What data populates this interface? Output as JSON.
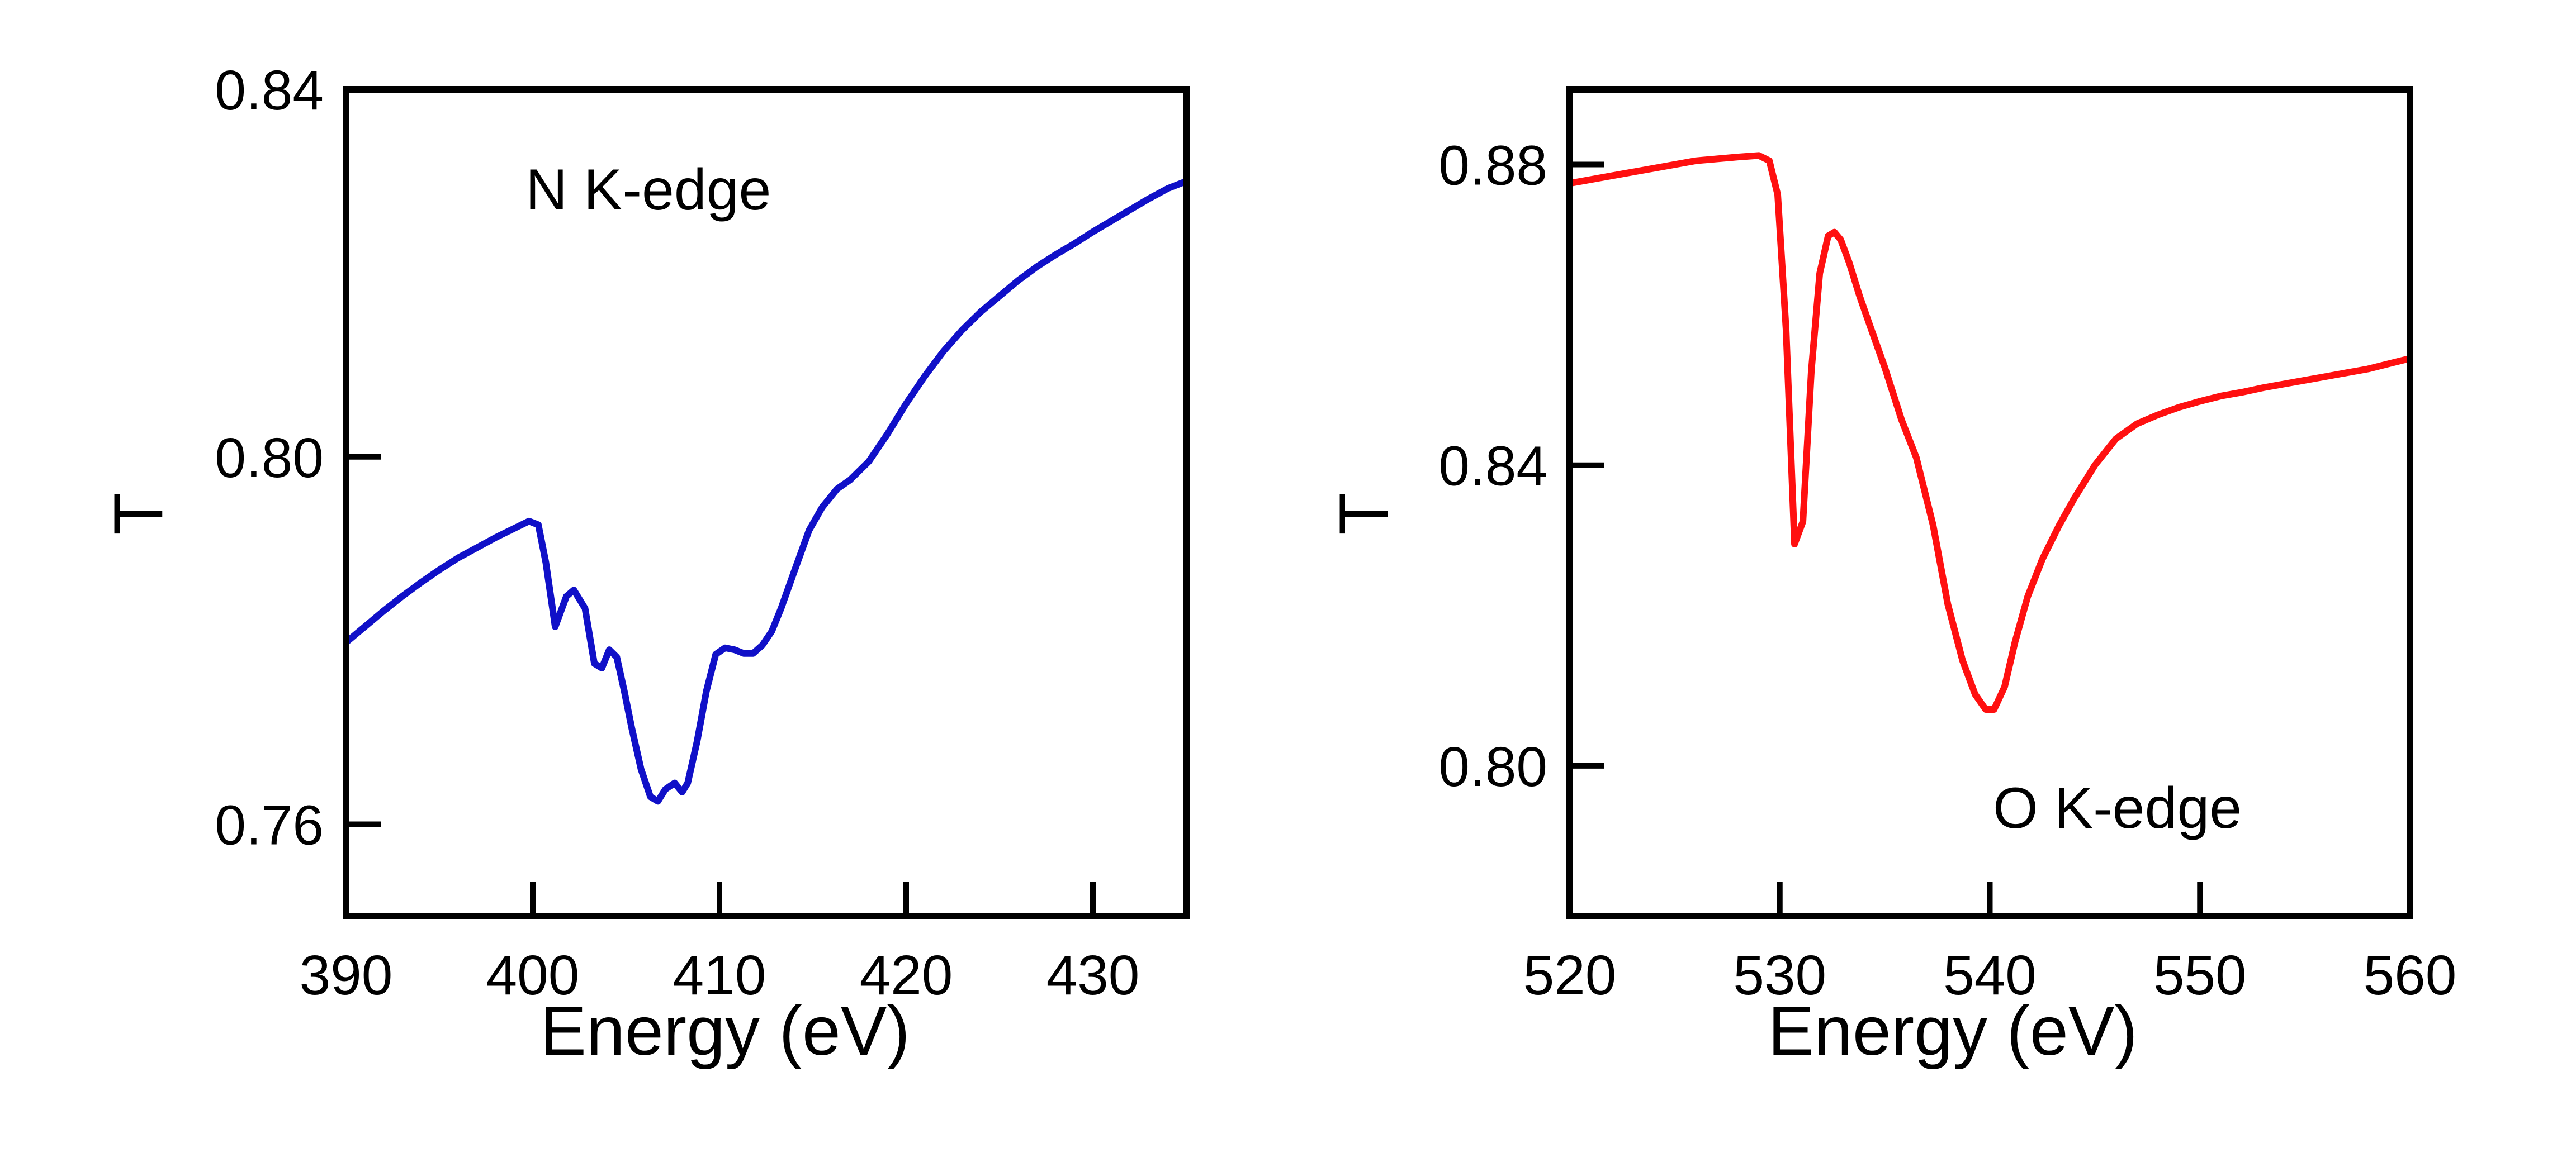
{
  "chart_data": [
    {
      "type": "line",
      "annotation": "N K-edge",
      "xlabel": "Energy (eV)",
      "ylabel": "T",
      "xlim": [
        390,
        435
      ],
      "ylim": [
        0.75,
        0.84
      ],
      "xticks": [
        390,
        400,
        410,
        420,
        430
      ],
      "xtick_labels": [
        "390",
        "400",
        "410",
        "420",
        "430"
      ],
      "yticks": [
        0.76,
        0.8,
        0.84
      ],
      "ytick_labels": [
        "0.76",
        "0.80",
        "0.84"
      ],
      "grid": false,
      "series": [
        {
          "name": "N K-edge",
          "color": "#1010c8",
          "x": [
            390,
            391,
            392,
            393,
            394,
            395,
            396,
            397,
            398,
            399,
            399.8,
            400.3,
            400.7,
            401.2,
            401.8,
            402.2,
            402.8,
            403.3,
            403.7,
            404.1,
            404.5,
            404.9,
            405.3,
            405.8,
            406.3,
            406.7,
            407.1,
            407.6,
            408,
            408.3,
            408.8,
            409.3,
            409.8,
            410.3,
            410.8,
            411.3,
            411.8,
            412.3,
            412.8,
            413.3,
            414,
            414.8,
            415.5,
            416.3,
            417,
            418,
            419,
            420,
            421,
            422,
            423,
            424,
            425,
            426,
            427,
            428,
            429,
            430,
            431,
            432,
            433,
            434,
            435
          ],
          "values": [
            0.7798,
            0.7815,
            0.7832,
            0.7848,
            0.7863,
            0.7877,
            0.789,
            0.7901,
            0.7912,
            0.7922,
            0.793,
            0.7926,
            0.7885,
            0.7815,
            0.7848,
            0.7855,
            0.7835,
            0.7775,
            0.777,
            0.779,
            0.7782,
            0.7745,
            0.7705,
            0.766,
            0.763,
            0.7625,
            0.7638,
            0.7645,
            0.7635,
            0.7645,
            0.769,
            0.7745,
            0.7785,
            0.7792,
            0.779,
            0.7786,
            0.7786,
            0.7795,
            0.781,
            0.7835,
            0.7875,
            0.792,
            0.7945,
            0.7965,
            0.7975,
            0.7995,
            0.8025,
            0.8058,
            0.8088,
            0.8115,
            0.8138,
            0.8158,
            0.8175,
            0.8192,
            0.8207,
            0.822,
            0.8232,
            0.8245,
            0.8257,
            0.8269,
            0.8281,
            0.8292,
            0.83
          ]
        }
      ]
    },
    {
      "type": "line",
      "annotation": "O K-edge",
      "xlabel": "Energy (eV)",
      "ylabel": "T",
      "xlim": [
        520,
        560
      ],
      "ylim": [
        0.78,
        0.89
      ],
      "xticks": [
        520,
        530,
        540,
        550,
        560
      ],
      "xtick_labels": [
        "520",
        "530",
        "540",
        "550",
        "560"
      ],
      "yticks": [
        0.8,
        0.84,
        0.88
      ],
      "ytick_labels": [
        "0.80",
        "0.84",
        "0.88"
      ],
      "grid": false,
      "series": [
        {
          "name": "O K-edge",
          "color": "#ff1010",
          "x": [
            520,
            522,
            524,
            526,
            528,
            529,
            529.5,
            529.9,
            530.3,
            530.7,
            531.1,
            531.5,
            531.9,
            532.3,
            532.6,
            532.9,
            533.3,
            533.8,
            534.3,
            535,
            535.8,
            536.5,
            537.3,
            538,
            538.7,
            539.3,
            539.8,
            540.2,
            540.7,
            541.2,
            541.8,
            542.5,
            543.3,
            544,
            545,
            546,
            547,
            548,
            549,
            550,
            551,
            552,
            553,
            554,
            555,
            556,
            557,
            558,
            559,
            560
          ],
          "values": [
            0.8775,
            0.8785,
            0.8795,
            0.8805,
            0.881,
            0.8812,
            0.8805,
            0.876,
            0.858,
            0.8295,
            0.8325,
            0.8525,
            0.8655,
            0.8705,
            0.871,
            0.87,
            0.867,
            0.8625,
            0.8585,
            0.853,
            0.846,
            0.841,
            0.832,
            0.8215,
            0.814,
            0.8095,
            0.8075,
            0.8075,
            0.8105,
            0.8165,
            0.8225,
            0.8275,
            0.832,
            0.8355,
            0.84,
            0.8435,
            0.8455,
            0.8467,
            0.8477,
            0.8485,
            0.8492,
            0.8497,
            0.8503,
            0.8508,
            0.8513,
            0.8518,
            0.8523,
            0.8528,
            0.8535,
            0.8542
          ]
        }
      ]
    }
  ]
}
